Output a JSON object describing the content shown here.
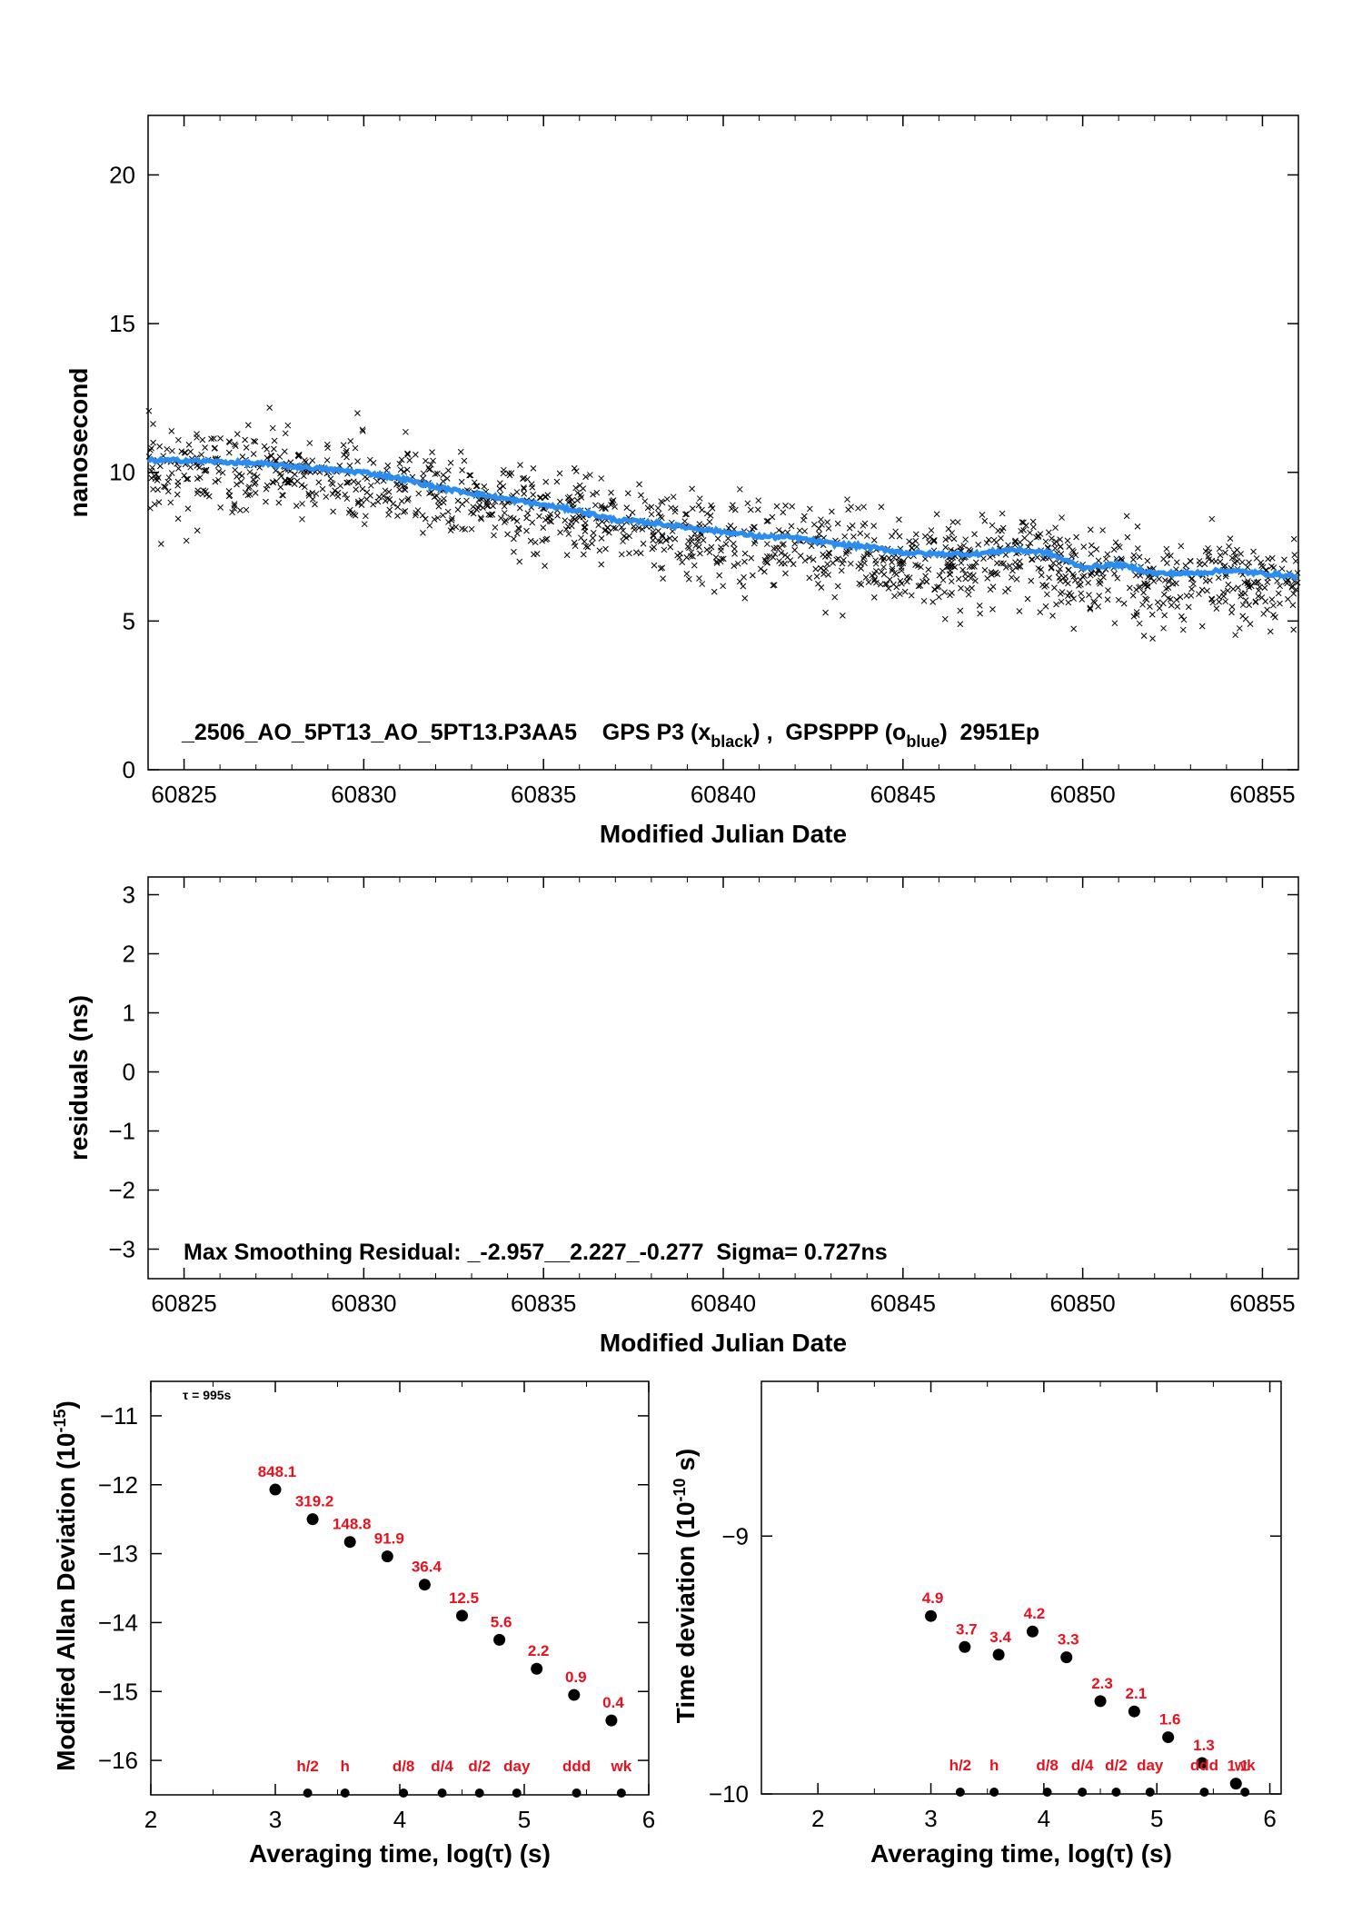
{
  "chart_data": [
    {
      "type": "scatter",
      "xlabel": "Modified Julian Date",
      "ylabel": "nanosecond",
      "xlim": [
        60824,
        60856
      ],
      "ylim": [
        0,
        22
      ],
      "xticks": [
        60825,
        60830,
        60835,
        60840,
        60845,
        60850,
        60855
      ],
      "yticks": [
        0,
        5,
        10,
        15,
        20
      ],
      "annotation": {
        "prefix": "_2506_AO_5PT13_AO_5PT13.P3AA5    GPS P3 (x",
        "sub1": "black",
        "mid": ") ,  GPSPPP (o",
        "sub2": "blue",
        "suffix": ")  2951Ep"
      },
      "smooth_color": "#2b8df0",
      "points_color": "#000000",
      "series": [
        {
          "name": "GPSPPP (o blue)",
          "kind": "line",
          "x": [
            60824,
            60825,
            60826,
            60827,
            60828,
            60829,
            60830,
            60831,
            60832,
            60833,
            60834,
            60835,
            60836,
            60837,
            60838,
            60839,
            60840,
            60841,
            60842,
            60843,
            60844,
            60845,
            60846,
            60847,
            60848,
            60849,
            60850,
            60851,
            60852,
            60853,
            60854,
            60855,
            60856
          ],
          "y": [
            10.4,
            10.4,
            10.35,
            10.3,
            10.2,
            10.1,
            10.0,
            9.8,
            9.5,
            9.3,
            9.1,
            8.9,
            8.7,
            8.4,
            8.3,
            8.15,
            8.0,
            7.85,
            7.8,
            7.6,
            7.5,
            7.3,
            7.25,
            7.25,
            7.4,
            7.3,
            6.8,
            6.9,
            6.6,
            6.6,
            6.7,
            6.6,
            6.5
          ]
        },
        {
          "name": "GPS P3 (x black)",
          "kind": "scatter",
          "trend": "same as smoothed curve minus ~0.3 ns, scatter about 0.7 ns"
        }
      ]
    },
    {
      "type": "scatter",
      "xlabel": "Modified Julian Date",
      "ylabel": "residuals (ns)",
      "xlim": [
        60824,
        60856
      ],
      "ylim": [
        -3.5,
        3.3
      ],
      "xticks": [
        60825,
        60830,
        60835,
        60840,
        60845,
        60850,
        60855
      ],
      "yticks": [
        -3,
        -2,
        -1,
        0,
        1,
        2,
        3
      ],
      "annotation": "Max Smoothing Residual: _-2.957__2.227_-0.277  Sigma= 0.727ns",
      "summary": {
        "min": -2.957,
        "max": 2.227,
        "mean": -0.277,
        "sigma_ns": 0.727
      }
    },
    {
      "type": "scatter",
      "xlabel": "Averaging time, log(τ) (s)",
      "ylabel": "Modified Allan Deviation (10",
      "ylabel_sup": "-15",
      "ylabel_end": ")",
      "xlim": [
        2,
        6
      ],
      "ylim": [
        -16.5,
        -10.5
      ],
      "xticks": [
        2,
        3,
        4,
        5,
        6
      ],
      "yticks": [
        -16,
        -15,
        -14,
        -13,
        -12,
        -11
      ],
      "annotation": "τ = 995s",
      "points": [
        {
          "x": 3.0,
          "y": -12.07,
          "label": "848.1"
        },
        {
          "x": 3.3,
          "y": -12.5,
          "label": "319.2"
        },
        {
          "x": 3.6,
          "y": -12.83,
          "label": "148.8"
        },
        {
          "x": 3.9,
          "y": -13.04,
          "label": "91.9"
        },
        {
          "x": 4.2,
          "y": -13.45,
          "label": "36.4"
        },
        {
          "x": 4.5,
          "y": -13.9,
          "label": "12.5"
        },
        {
          "x": 4.8,
          "y": -14.25,
          "label": "5.6"
        },
        {
          "x": 5.1,
          "y": -14.67,
          "label": "2.2"
        },
        {
          "x": 5.4,
          "y": -15.05,
          "label": "0.9"
        },
        {
          "x": 5.7,
          "y": -15.42,
          "label": "0.4"
        }
      ],
      "markers": [
        {
          "x": 3.26,
          "label": "h/2"
        },
        {
          "x": 3.56,
          "label": "h"
        },
        {
          "x": 4.03,
          "label": "d/8"
        },
        {
          "x": 4.34,
          "label": "d/4"
        },
        {
          "x": 4.64,
          "label": "d/2"
        },
        {
          "x": 4.94,
          "label": "day"
        },
        {
          "x": 5.42,
          "label": "ddd"
        },
        {
          "x": 5.78,
          "label": "wk"
        }
      ]
    },
    {
      "type": "scatter",
      "xlabel": "Averaging time, log(τ) (s)",
      "ylabel": "Time deviation (10",
      "ylabel_sup": "-10",
      "ylabel_end": " s)",
      "xlim": [
        1.5,
        6.1
      ],
      "ylim": [
        -10,
        -8.4
      ],
      "xticks": [
        2,
        3,
        4,
        5,
        6
      ],
      "yticks": [
        -10,
        -9
      ],
      "points": [
        {
          "x": 3.0,
          "y": -9.31,
          "label": "4.9"
        },
        {
          "x": 3.3,
          "y": -9.43,
          "label": "3.7"
        },
        {
          "x": 3.6,
          "y": -9.46,
          "label": "3.4"
        },
        {
          "x": 3.9,
          "y": -9.37,
          "label": "4.2"
        },
        {
          "x": 4.2,
          "y": -9.47,
          "label": "3.3"
        },
        {
          "x": 4.5,
          "y": -9.64,
          "label": "2.3"
        },
        {
          "x": 4.8,
          "y": -9.68,
          "label": "2.1"
        },
        {
          "x": 5.1,
          "y": -9.78,
          "label": "1.6"
        },
        {
          "x": 5.4,
          "y": -9.88,
          "label": "1.3"
        },
        {
          "x": 5.7,
          "y": -9.96,
          "label": "1.1"
        }
      ],
      "markers": [
        {
          "x": 3.26,
          "label": "h/2"
        },
        {
          "x": 3.56,
          "label": "h"
        },
        {
          "x": 4.03,
          "label": "d/8"
        },
        {
          "x": 4.34,
          "label": "d/4"
        },
        {
          "x": 4.64,
          "label": "d/2"
        },
        {
          "x": 4.94,
          "label": "day"
        },
        {
          "x": 5.42,
          "label": "ddd"
        },
        {
          "x": 5.78,
          "label": "wk"
        }
      ]
    }
  ]
}
